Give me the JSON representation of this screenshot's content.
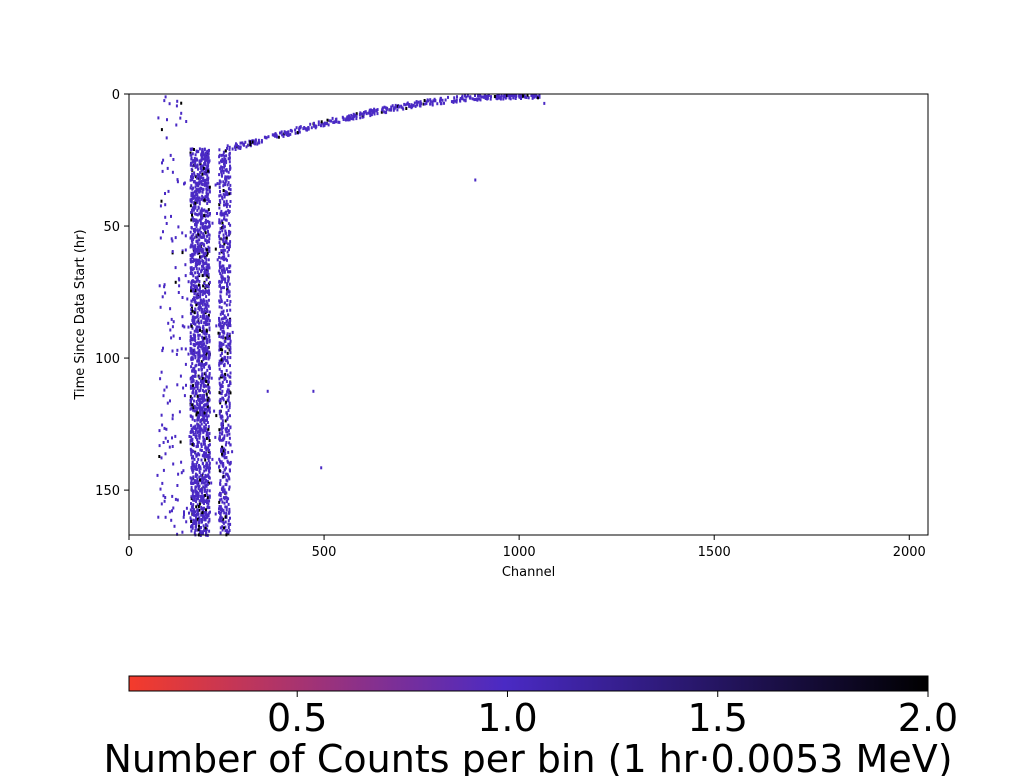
{
  "chart_data": {
    "type": "heatmap",
    "title": "",
    "xlabel": "Channel",
    "ylabel": "Time Since Data Start (hr)",
    "xlim": [
      0,
      2048
    ],
    "ylim": [
      167,
      0
    ],
    "y_inverted": true,
    "x_ticks": [
      0,
      500,
      1000,
      1500,
      2000
    ],
    "y_ticks": [
      0,
      50,
      100,
      150
    ],
    "x_tick_labels": [
      "0",
      "500",
      "1000",
      "1500",
      "2000"
    ],
    "y_tick_labels": [
      "0",
      "50",
      "100",
      "150"
    ],
    "grid": false,
    "colorbar": {
      "label": "Number of Counts per bin (1 hr·0.0053 MeV)",
      "range": [
        0.1,
        2.0
      ],
      "ticks": [
        0.5,
        1.0,
        1.5,
        2.0
      ],
      "tick_labels": [
        "0.5",
        "1.0",
        "1.5",
        "2.0"
      ],
      "orientation": "horizontal",
      "colors": [
        "#f43b2b",
        "#4a2ac4",
        "#000000"
      ]
    },
    "colors": {
      "single_count": "#4a2ac4",
      "double_count": "#000000"
    },
    "features": {
      "band_1_channel_range": [
        155,
        205
      ],
      "band_2_channel_range": [
        228,
        258
      ],
      "band_time_range": [
        20,
        167
      ],
      "diagonal_trail": {
        "start": [
          250,
          20
        ],
        "end": [
          1050,
          0
        ]
      },
      "isolated_points": [
        [
          470,
          112
        ],
        [
          353,
          112
        ],
        [
          885,
          32
        ],
        [
          490,
          141
        ],
        [
          1062,
          3
        ]
      ]
    }
  }
}
